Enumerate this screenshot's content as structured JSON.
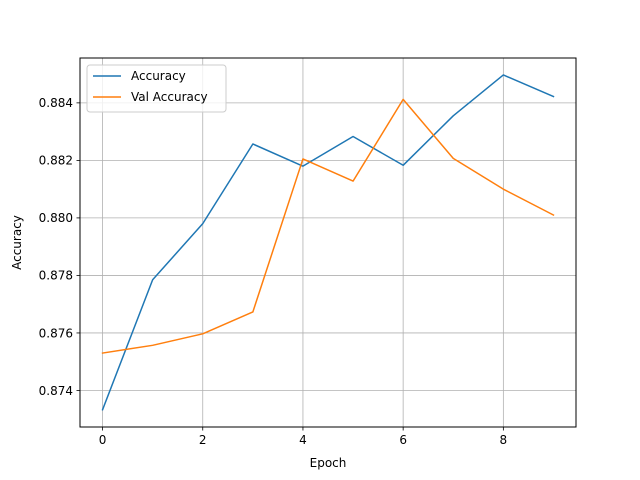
{
  "chart_data": {
    "type": "line",
    "title": "",
    "xlabel": "Epoch",
    "ylabel": "Accuracy",
    "x": [
      0,
      1,
      2,
      3,
      4,
      5,
      6,
      7,
      8,
      9
    ],
    "xticks": [
      0,
      2,
      4,
      6,
      8
    ],
    "xtick_labels": [
      "0",
      "2",
      "4",
      "6",
      "8"
    ],
    "yticks": [
      0.874,
      0.876,
      0.878,
      0.88,
      0.882,
      0.884
    ],
    "ytick_labels": [
      "0.874",
      "0.876",
      "0.878",
      "0.880",
      "0.882",
      "0.884"
    ],
    "xlim": [
      -0.45,
      9.45
    ],
    "ylim": [
      0.87273,
      0.88556
    ],
    "grid": true,
    "legend_position": "upper-left",
    "series": [
      {
        "name": "Accuracy",
        "color": "#1f77b4",
        "values": [
          0.87333,
          0.87785,
          0.8798,
          0.88257,
          0.8818,
          0.88283,
          0.88183,
          0.88355,
          0.88497,
          0.88422
        ]
      },
      {
        "name": "Val Accuracy",
        "color": "#ff7f0e",
        "values": [
          0.8753,
          0.87557,
          0.87597,
          0.87673,
          0.88205,
          0.88128,
          0.88412,
          0.88207,
          0.881,
          0.8801
        ]
      }
    ]
  }
}
